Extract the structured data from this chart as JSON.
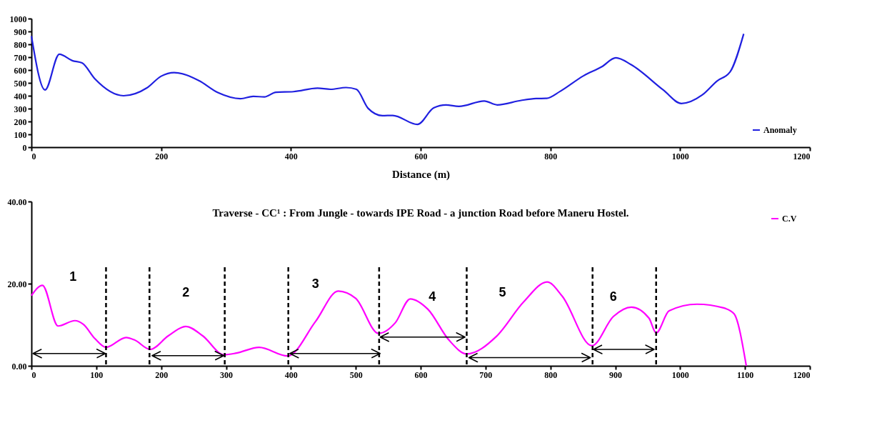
{
  "chart_data": [
    {
      "type": "line",
      "xlabel": "Distance (m)",
      "xlim": [
        0,
        1200
      ],
      "xticks": [
        0,
        200,
        400,
        600,
        800,
        1000,
        1200
      ],
      "ylim": [
        0,
        1000
      ],
      "yticks": [
        0,
        100,
        200,
        300,
        400,
        500,
        600,
        700,
        800,
        900,
        1000
      ],
      "grid": false,
      "legend": "bottom right",
      "marker": "none",
      "line_style": "solid",
      "series": [
        {
          "name": "Anomaly",
          "color": "#2020e0",
          "x": [
            0,
            21,
            43,
            63,
            78,
            98,
            142,
            178,
            200,
            220,
            258,
            288,
            322,
            342,
            359,
            377,
            404,
            441,
            461,
            485,
            501,
            519,
            541,
            557,
            595,
            620,
            639,
            659,
            698,
            718,
            755,
            778,
            794,
            815,
            851,
            879,
            901,
            924,
            974,
            1002,
            1034,
            1057,
            1077,
            1098
          ],
          "values": [
            864,
            445,
            723,
            673,
            655,
            530,
            400,
            461,
            552,
            580,
            518,
            423,
            377,
            395,
            391,
            427,
            432,
            459,
            450,
            464,
            450,
            302,
            245,
            247,
            177,
            305,
            329,
            317,
            359,
            329,
            364,
            378,
            380,
            434,
            555,
            625,
            695,
            643,
            445,
            340,
            406,
            515,
            585,
            881
          ]
        }
      ]
    },
    {
      "type": "line",
      "title": "Traverse -   CC¹ :  From Jungle - towards IPE Road - a junction Road before Maneru Hostel.",
      "xlim": [
        0,
        1200
      ],
      "xticks": [
        0,
        100,
        200,
        300,
        400,
        500,
        600,
        700,
        800,
        900,
        1000,
        1100,
        1200
      ],
      "ylim": [
        0,
        40
      ],
      "yticks": [
        {
          "value": 0,
          "label": "0.00"
        },
        {
          "value": 20,
          "label": "20.00"
        },
        {
          "value": 40,
          "label": "40.00"
        }
      ],
      "grid": false,
      "legend": "top right",
      "marker": "none",
      "line_style": "solid",
      "series": [
        {
          "name": "C.V",
          "color": "#ff00ff",
          "x": [
            0,
            17,
            41,
            67,
            80,
            98,
            115,
            146,
            159,
            183,
            211,
            238,
            264,
            297,
            316,
            351,
            395,
            438,
            473,
            500,
            535,
            561,
            584,
            611,
            644,
            671,
            717,
            759,
            795,
            818,
            864,
            897,
            925,
            952,
            963,
            983,
            1026,
            1067,
            1083,
            1102
          ],
          "values": [
            17.1,
            19.6,
            9.7,
            11.0,
            10.1,
            6.6,
            4.5,
            6.9,
            6.3,
            4.0,
            7.3,
            9.6,
            7.3,
            2.7,
            3.1,
            4.5,
            2.4,
            10.8,
            18.2,
            16.4,
            7.9,
            10.5,
            16.3,
            13.8,
            6.2,
            2.9,
            7.2,
            15.6,
            20.4,
            17.0,
            4.9,
            12.0,
            14.3,
            11.6,
            8.0,
            13.4,
            15.0,
            14.1,
            12.7,
            0
          ]
        }
      ],
      "ref_lines": [
        {
          "axis": "x",
          "value": 115,
          "color": "#000000",
          "line_style": "dashed"
        },
        {
          "axis": "x",
          "value": 182,
          "color": "#000000",
          "line_style": "dashed"
        },
        {
          "axis": "x",
          "value": 298,
          "color": "#000000",
          "line_style": "dashed"
        },
        {
          "axis": "x",
          "value": 396,
          "color": "#000000",
          "line_style": "dashed"
        },
        {
          "axis": "x",
          "value": 536,
          "color": "#000000",
          "line_style": "dashed"
        },
        {
          "axis": "x",
          "value": 671,
          "color": "#000000",
          "line_style": "dashed"
        },
        {
          "axis": "x",
          "value": 865,
          "color": "#000000",
          "line_style": "dashed"
        },
        {
          "axis": "x",
          "value": 963,
          "color": "#000000",
          "line_style": "dashed"
        }
      ],
      "annotations": [
        "1",
        "2",
        "3",
        "4",
        "5",
        "6"
      ]
    }
  ]
}
